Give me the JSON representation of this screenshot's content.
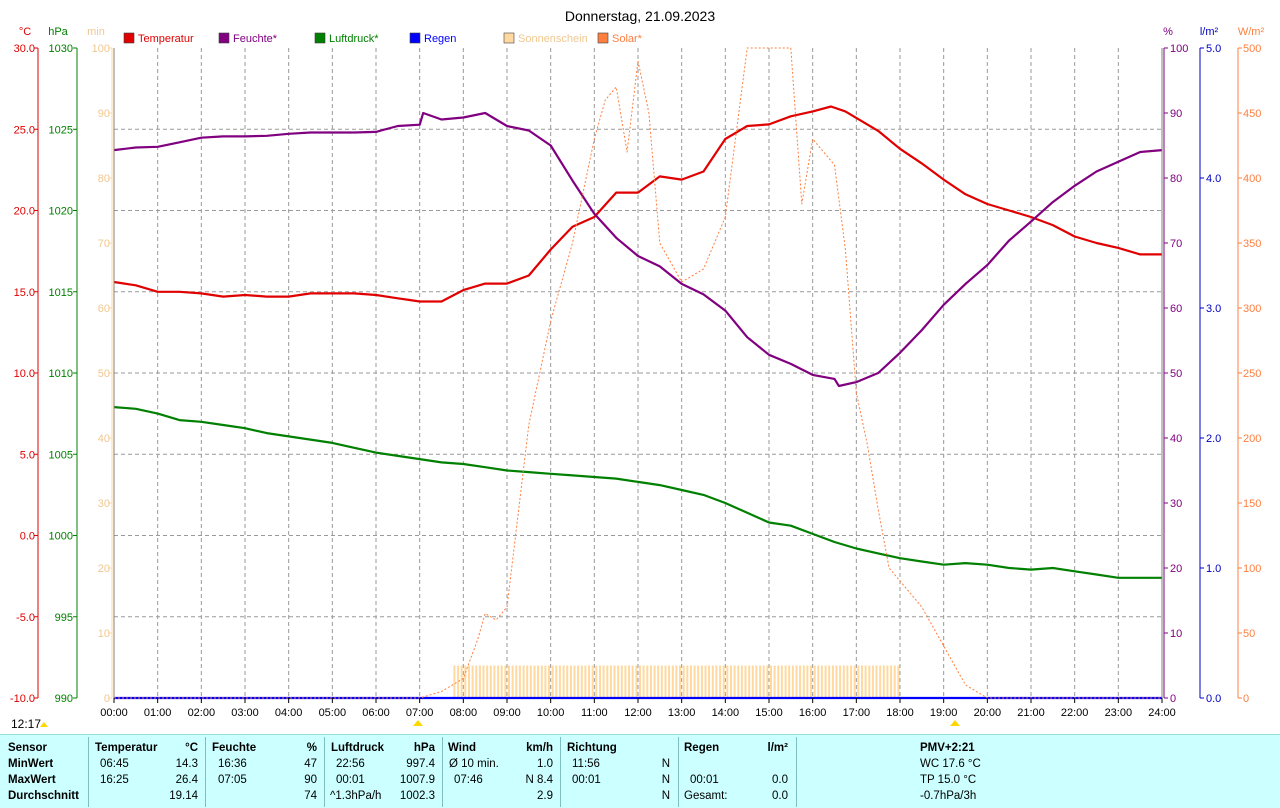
{
  "title": "Donnerstag, 21.09.2023",
  "legend": [
    {
      "label": "Temperatur",
      "color": "#e00000"
    },
    {
      "label": "Feuchte*",
      "color": "#800080"
    },
    {
      "label": "Luftdruck*",
      "color": "#008000"
    },
    {
      "label": "Regen",
      "color": "#0000ff"
    },
    {
      "label": "Sonnenschein",
      "color": "#ffd9a0"
    },
    {
      "label": "Solar*",
      "color": "#ff7f3f"
    }
  ],
  "axes": {
    "temp": {
      "unit": "°C",
      "ticks": [
        "30.0",
        "25.0",
        "20.0",
        "15.0",
        "10.0",
        "5.0",
        "0.0",
        "-5.0",
        "-10.0"
      ],
      "color": "#e00000"
    },
    "pressure": {
      "unit": "hPa",
      "ticks": [
        "1030",
        "1025",
        "1020",
        "1015",
        "1010",
        "1005",
        "1000",
        "995",
        "990"
      ],
      "color": "#008000"
    },
    "sun_min": {
      "unit": "min",
      "ticks": [
        "100",
        "90",
        "80",
        "70",
        "60",
        "50",
        "40",
        "30",
        "20",
        "10",
        "0"
      ],
      "color": "#ffd9a0"
    },
    "humidity": {
      "unit": "%",
      "ticks": [
        "100",
        "90",
        "80",
        "70",
        "60",
        "50",
        "40",
        "30",
        "20",
        "10",
        "0"
      ],
      "color": "#800080"
    },
    "rain": {
      "unit": "l/m²",
      "ticks": [
        "5.0",
        "4.0",
        "3.0",
        "2.0",
        "1.0",
        "0.0"
      ],
      "color": "#0000c0"
    },
    "solar": {
      "unit": "W/m²",
      "ticks": [
        "500",
        "450",
        "400",
        "350",
        "300",
        "250",
        "200",
        "150",
        "100",
        "50",
        "0"
      ],
      "color": "#ff7f3f"
    },
    "x_ticks": [
      "00:00",
      "01:00",
      "02:00",
      "03:00",
      "04:00",
      "05:00",
      "06:00",
      "07:00",
      "08:00",
      "09:00",
      "10:00",
      "11:00",
      "12:00",
      "13:00",
      "14:00",
      "15:00",
      "16:00",
      "17:00",
      "18:00",
      "19:00",
      "20:00",
      "21:00",
      "22:00",
      "23:00",
      "24:00"
    ]
  },
  "current_time": "12:17",
  "chart_data": {
    "type": "line",
    "title": "Donnerstag, 21.09.2023",
    "x_unit": "hours",
    "xlim": [
      0,
      24
    ],
    "grid": true,
    "legend_position": "top",
    "series": [
      {
        "name": "Temperatur",
        "axis": "temp",
        "color": "#e00000",
        "ylim": [
          -10,
          30
        ],
        "points": [
          [
            0,
            15.6
          ],
          [
            0.5,
            15.4
          ],
          [
            1,
            15.0
          ],
          [
            1.5,
            15.0
          ],
          [
            2,
            14.9
          ],
          [
            2.5,
            14.7
          ],
          [
            3,
            14.8
          ],
          [
            3.5,
            14.7
          ],
          [
            4,
            14.7
          ],
          [
            4.5,
            14.9
          ],
          [
            5,
            14.9
          ],
          [
            5.5,
            14.9
          ],
          [
            6,
            14.8
          ],
          [
            6.5,
            14.6
          ],
          [
            6.75,
            14.5
          ],
          [
            7,
            14.4
          ],
          [
            7.5,
            14.4
          ],
          [
            8,
            15.1
          ],
          [
            8.5,
            15.5
          ],
          [
            9,
            15.5
          ],
          [
            9.5,
            16.0
          ],
          [
            10,
            17.6
          ],
          [
            10.5,
            19.0
          ],
          [
            11,
            19.6
          ],
          [
            11.5,
            21.1
          ],
          [
            12,
            21.1
          ],
          [
            12.5,
            22.1
          ],
          [
            13,
            21.9
          ],
          [
            13.5,
            22.4
          ],
          [
            14,
            24.4
          ],
          [
            14.5,
            25.2
          ],
          [
            15,
            25.3
          ],
          [
            15.5,
            25.8
          ],
          [
            16,
            26.1
          ],
          [
            16.42,
            26.4
          ],
          [
            16.75,
            26.1
          ],
          [
            17,
            25.7
          ],
          [
            17.5,
            24.9
          ],
          [
            18,
            23.8
          ],
          [
            18.5,
            22.9
          ],
          [
            19,
            21.9
          ],
          [
            19.5,
            21.0
          ],
          [
            20,
            20.4
          ],
          [
            20.5,
            20.0
          ],
          [
            21,
            19.6
          ],
          [
            21.5,
            19.1
          ],
          [
            22,
            18.4
          ],
          [
            22.5,
            18.0
          ],
          [
            23,
            17.7
          ],
          [
            23.5,
            17.3
          ],
          [
            24,
            17.3
          ]
        ]
      },
      {
        "name": "Feuchte*",
        "axis": "humidity",
        "color": "#800080",
        "ylim": [
          0,
          100
        ],
        "points": [
          [
            0,
            84.3
          ],
          [
            0.5,
            84.7
          ],
          [
            1,
            84.8
          ],
          [
            1.5,
            85.5
          ],
          [
            2,
            86.2
          ],
          [
            2.5,
            86.4
          ],
          [
            3,
            86.4
          ],
          [
            3.5,
            86.5
          ],
          [
            4,
            86.8
          ],
          [
            4.5,
            87.0
          ],
          [
            5,
            87.0
          ],
          [
            5.5,
            87.0
          ],
          [
            6,
            87.1
          ],
          [
            6.5,
            88.0
          ],
          [
            7,
            88.2
          ],
          [
            7.08,
            90.0
          ],
          [
            7.5,
            89.0
          ],
          [
            8,
            89.3
          ],
          [
            8.5,
            90.0
          ],
          [
            9,
            88.0
          ],
          [
            9.5,
            87.3
          ],
          [
            10,
            85.0
          ],
          [
            10.5,
            79.6
          ],
          [
            11,
            74.5
          ],
          [
            11.5,
            70.8
          ],
          [
            12,
            68.0
          ],
          [
            12.5,
            66.4
          ],
          [
            13,
            63.7
          ],
          [
            13.5,
            62.1
          ],
          [
            14,
            59.6
          ],
          [
            14.5,
            55.5
          ],
          [
            15,
            52.8
          ],
          [
            15.5,
            51.4
          ],
          [
            16,
            49.7
          ],
          [
            16.5,
            49.1
          ],
          [
            16.6,
            48.0
          ],
          [
            17,
            48.6
          ],
          [
            17.5,
            50.0
          ],
          [
            18,
            53.1
          ],
          [
            18.5,
            56.6
          ],
          [
            19,
            60.5
          ],
          [
            19.5,
            63.7
          ],
          [
            20,
            66.6
          ],
          [
            20.5,
            70.4
          ],
          [
            21,
            73.3
          ],
          [
            21.5,
            76.3
          ],
          [
            22,
            78.8
          ],
          [
            22.5,
            81.0
          ],
          [
            23,
            82.5
          ],
          [
            23.5,
            84.0
          ],
          [
            24,
            84.3
          ]
        ]
      },
      {
        "name": "Luftdruck*",
        "axis": "pressure",
        "color": "#008000",
        "ylim": [
          990,
          1030
        ],
        "points": [
          [
            0,
            1007.9
          ],
          [
            0.5,
            1007.8
          ],
          [
            1,
            1007.5
          ],
          [
            1.5,
            1007.1
          ],
          [
            2,
            1007.0
          ],
          [
            2.5,
            1006.8
          ],
          [
            3,
            1006.6
          ],
          [
            3.5,
            1006.3
          ],
          [
            4,
            1006.1
          ],
          [
            4.5,
            1005.9
          ],
          [
            5,
            1005.7
          ],
          [
            5.5,
            1005.4
          ],
          [
            6,
            1005.1
          ],
          [
            6.5,
            1004.9
          ],
          [
            7,
            1004.7
          ],
          [
            7.5,
            1004.5
          ],
          [
            8,
            1004.4
          ],
          [
            8.5,
            1004.2
          ],
          [
            9,
            1004.0
          ],
          [
            9.5,
            1003.9
          ],
          [
            10,
            1003.8
          ],
          [
            10.5,
            1003.7
          ],
          [
            11,
            1003.6
          ],
          [
            11.5,
            1003.5
          ],
          [
            12,
            1003.3
          ],
          [
            12.5,
            1003.1
          ],
          [
            13,
            1002.8
          ],
          [
            13.5,
            1002.5
          ],
          [
            14,
            1002.0
          ],
          [
            14.5,
            1001.4
          ],
          [
            15,
            1000.8
          ],
          [
            15.5,
            1000.6
          ],
          [
            16,
            1000.1
          ],
          [
            16.5,
            999.6
          ],
          [
            17,
            999.2
          ],
          [
            17.5,
            998.9
          ],
          [
            18,
            998.6
          ],
          [
            18.5,
            998.4
          ],
          [
            19,
            998.2
          ],
          [
            19.5,
            998.3
          ],
          [
            20,
            998.2
          ],
          [
            20.5,
            998.0
          ],
          [
            21,
            997.9
          ],
          [
            21.5,
            998.0
          ],
          [
            22,
            997.8
          ],
          [
            22.5,
            997.6
          ],
          [
            23,
            997.4
          ],
          [
            23.5,
            997.4
          ],
          [
            24,
            997.4
          ]
        ]
      },
      {
        "name": "Regen",
        "axis": "rain",
        "color": "#0000ff",
        "ylim": [
          0,
          5
        ],
        "points": [
          [
            0,
            0
          ],
          [
            24,
            0
          ]
        ]
      },
      {
        "name": "Solar*",
        "axis": "solar",
        "color": "#ff7f3f",
        "ylim": [
          0,
          500
        ],
        "points": [
          [
            0,
            0
          ],
          [
            7,
            0
          ],
          [
            7.5,
            5
          ],
          [
            8,
            15
          ],
          [
            8.33,
            45
          ],
          [
            8.5,
            65
          ],
          [
            8.75,
            60
          ],
          [
            9,
            70
          ],
          [
            9.25,
            140
          ],
          [
            9.5,
            210
          ],
          [
            10,
            290
          ],
          [
            10.5,
            350
          ],
          [
            11,
            430
          ],
          [
            11.25,
            460
          ],
          [
            11.5,
            470
          ],
          [
            11.75,
            420
          ],
          [
            12,
            490
          ],
          [
            12.25,
            450
          ],
          [
            12.5,
            350
          ],
          [
            13,
            320
          ],
          [
            13.5,
            330
          ],
          [
            14,
            370
          ],
          [
            14.5,
            500
          ],
          [
            15,
            500
          ],
          [
            15.5,
            500
          ],
          [
            15.75,
            380
          ],
          [
            16,
            430
          ],
          [
            16.5,
            410
          ],
          [
            16.75,
            345
          ],
          [
            17,
            235
          ],
          [
            17.25,
            195
          ],
          [
            17.5,
            145
          ],
          [
            17.75,
            100
          ],
          [
            18,
            90
          ],
          [
            18.5,
            70
          ],
          [
            19,
            40
          ],
          [
            19.5,
            10
          ],
          [
            20,
            0
          ],
          [
            24,
            0
          ]
        ]
      },
      {
        "name": "Sonnenschein",
        "axis": "sun_min",
        "color": "#ffd9a0",
        "ylim": [
          0,
          100
        ],
        "bars_from": 7.75,
        "bars_to": 18.0,
        "values_min": 5
      }
    ]
  },
  "footer": {
    "headers": {
      "sensor": "Sensor",
      "temp": "Temperatur",
      "temp_unit": "°C",
      "hum": "Feuchte",
      "hum_unit": "%",
      "press": "Luftdruck",
      "press_unit": "hPa",
      "wind": "Wind",
      "wind_unit": "km/h",
      "dir": "Richtung",
      "rain": "Regen",
      "rain_unit": "l/m²",
      "pmv": "PMV+2:21"
    },
    "row_labels": [
      "MinWert",
      "MaxWert",
      "Durchschnitt"
    ],
    "min": {
      "temp_time": "06:45",
      "temp": "14.3",
      "hum_time": "16:36",
      "hum": "47",
      "press_time": "22:56",
      "press": "997.4",
      "wind_label": "Ø 10 min.",
      "wind": "1.0",
      "dir_time": "11:56",
      "dir": "N",
      "rain_time": "",
      "rain": "",
      "pmv": "WC 17.6 °C"
    },
    "max": {
      "temp_time": "16:25",
      "temp": "26.4",
      "hum_time": "07:05",
      "hum": "90",
      "press_time": "00:01",
      "press": "1007.9",
      "wind_label": "07:46",
      "wind": "N 8.4",
      "dir_time": "00:01",
      "dir": "N",
      "rain_time": "00:01",
      "rain": "0.0",
      "pmv": "TP 15.0 °C"
    },
    "avg": {
      "temp": "19.14",
      "hum": "74",
      "press_label": "^1.3hPa/h",
      "press": "1002.3",
      "wind": "2.9",
      "dir": "N",
      "rain_label": "Gesamt:",
      "rain": "0.0",
      "pmv": "-0.7hPa/3h"
    }
  }
}
